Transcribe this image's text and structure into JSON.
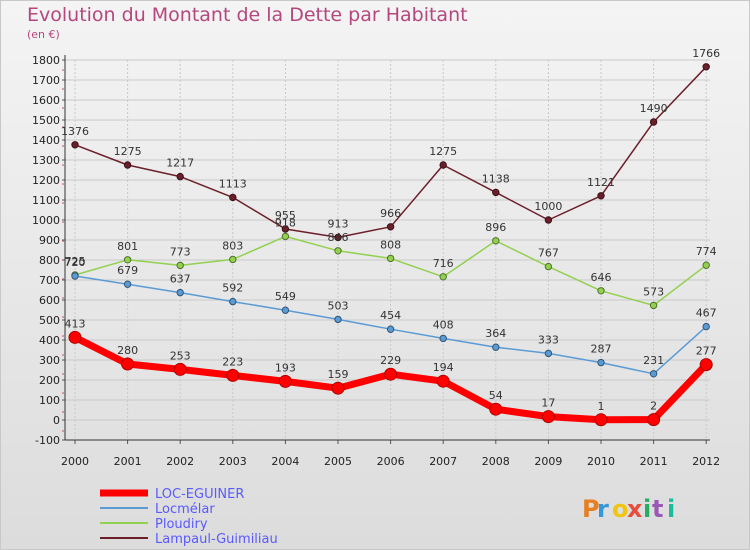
{
  "chart_data": {
    "type": "line",
    "title": "Evolution du Montant de la Dette par Habitant",
    "unit_label": "(en €)",
    "xlabel": "",
    "ylabel": "",
    "x": [
      "2000",
      "2001",
      "2002",
      "2003",
      "2004",
      "2005",
      "2006",
      "2007",
      "2008",
      "2009",
      "2010",
      "2011",
      "2012"
    ],
    "ylim": [
      -100,
      1800
    ],
    "yticks": [
      -100,
      0,
      100,
      200,
      300,
      400,
      500,
      600,
      700,
      800,
      900,
      1000,
      1100,
      1200,
      1300,
      1400,
      1500,
      1600,
      1700,
      1800
    ],
    "grid": true,
    "legend": "bottom-left",
    "series": [
      {
        "name": "LOC-EGUINER",
        "color": "#ff0000",
        "values": [
          413,
          280,
          253,
          223,
          193,
          159,
          229,
          194,
          54,
          17,
          1,
          2,
          277
        ]
      },
      {
        "name": "Locmélar",
        "color": "#5b9bd5",
        "values": [
          720,
          679,
          637,
          592,
          549,
          503,
          454,
          408,
          364,
          333,
          287,
          231,
          467
        ]
      },
      {
        "name": "Ploudiry",
        "color": "#92d050",
        "values": [
          725,
          801,
          773,
          803,
          918,
          846,
          808,
          716,
          896,
          767,
          646,
          573,
          774
        ]
      },
      {
        "name": "Lampaul-Guimiliau",
        "color": "#6b1f2a",
        "values": [
          1376,
          1275,
          1217,
          1113,
          955,
          913,
          966,
          1275,
          1138,
          1000,
          1121,
          1490,
          1766
        ]
      }
    ]
  },
  "logo": {
    "text": "Proxiti"
  }
}
